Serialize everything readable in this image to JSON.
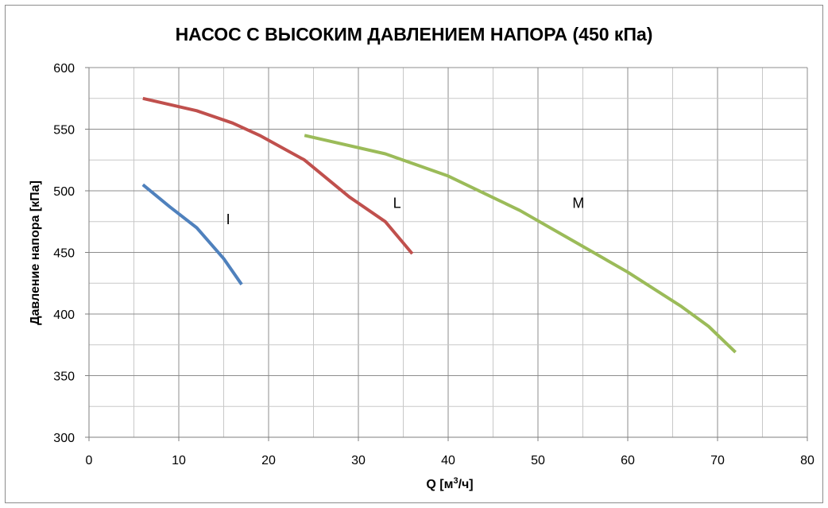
{
  "chart_data": {
    "type": "line",
    "title": "НАСОС С ВЫСОКИМ ДАВЛЕНИЕМ НАПОРА (450 кПа)",
    "xlabel_prefix": "Q [м",
    "xlabel_sup": "3",
    "xlabel_suffix": "/ч]",
    "ylabel": "Давление напора [кПа]",
    "xlim": [
      0,
      80
    ],
    "ylim": [
      300,
      600
    ],
    "x_ticks": [
      0,
      10,
      20,
      30,
      40,
      50,
      60,
      70,
      80
    ],
    "y_ticks": [
      300,
      350,
      400,
      450,
      500,
      550,
      600
    ],
    "x_minor_step": 5,
    "y_minor_step": 25,
    "grid": true,
    "legend": "none",
    "series": [
      {
        "label": "I",
        "color": "#4f81bd",
        "label_pos": {
          "x": 15.5,
          "y": 473
        },
        "points": [
          [
            6,
            505
          ],
          [
            9,
            487
          ],
          [
            12,
            470
          ],
          [
            15,
            445
          ],
          [
            17,
            424
          ]
        ]
      },
      {
        "label": "L",
        "color": "#c0504d",
        "label_pos": {
          "x": 34.3,
          "y": 486
        },
        "points": [
          [
            6,
            575
          ],
          [
            12,
            565
          ],
          [
            16,
            555
          ],
          [
            19,
            545
          ],
          [
            24,
            525
          ],
          [
            29,
            495
          ],
          [
            33,
            475
          ],
          [
            36,
            449
          ]
        ]
      },
      {
        "label": "M",
        "color": "#9bbb59",
        "label_pos": {
          "x": 54.5,
          "y": 486
        },
        "points": [
          [
            24,
            545
          ],
          [
            33,
            530
          ],
          [
            40,
            512
          ],
          [
            48,
            484
          ],
          [
            54,
            459
          ],
          [
            60,
            434
          ],
          [
            66,
            406
          ],
          [
            69,
            390
          ],
          [
            72,
            369
          ]
        ]
      }
    ]
  }
}
